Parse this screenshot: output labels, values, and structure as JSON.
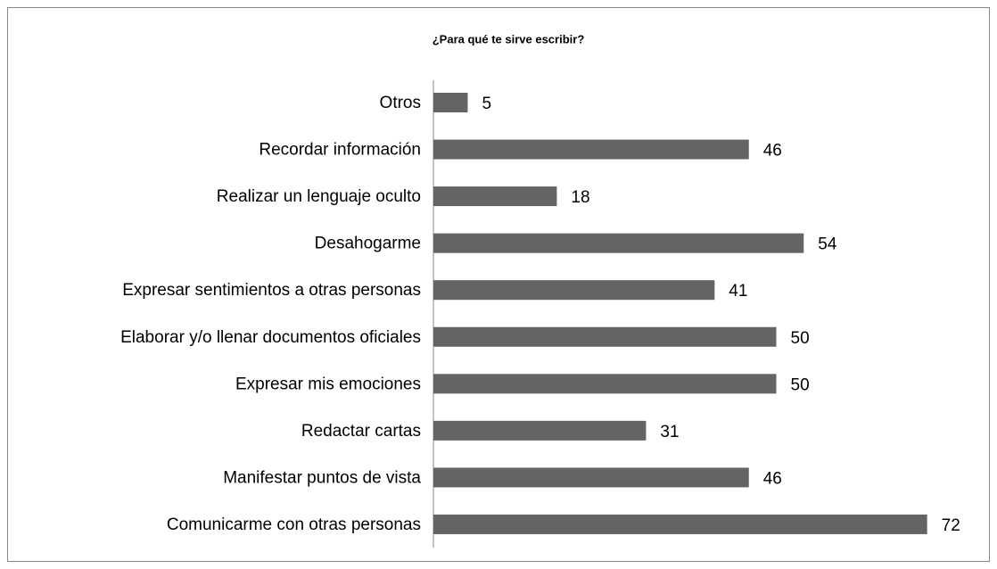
{
  "chart_data": {
    "type": "bar",
    "orientation": "horizontal",
    "title": "¿Para qué te sirve escribir?",
    "categories": [
      "Otros",
      "Recordar información",
      "Realizar un lenguaje oculto",
      "Desahogarme",
      "Expresar sentimientos a otras personas",
      "Elaborar y/o llenar documentos oficiales",
      "Expresar mis emociones",
      "Redactar cartas",
      "Manifestar puntos de vista",
      "Comunicarme con otras personas"
    ],
    "values": [
      5,
      46,
      18,
      54,
      41,
      50,
      50,
      31,
      46,
      72
    ],
    "color": "#646464"
  }
}
